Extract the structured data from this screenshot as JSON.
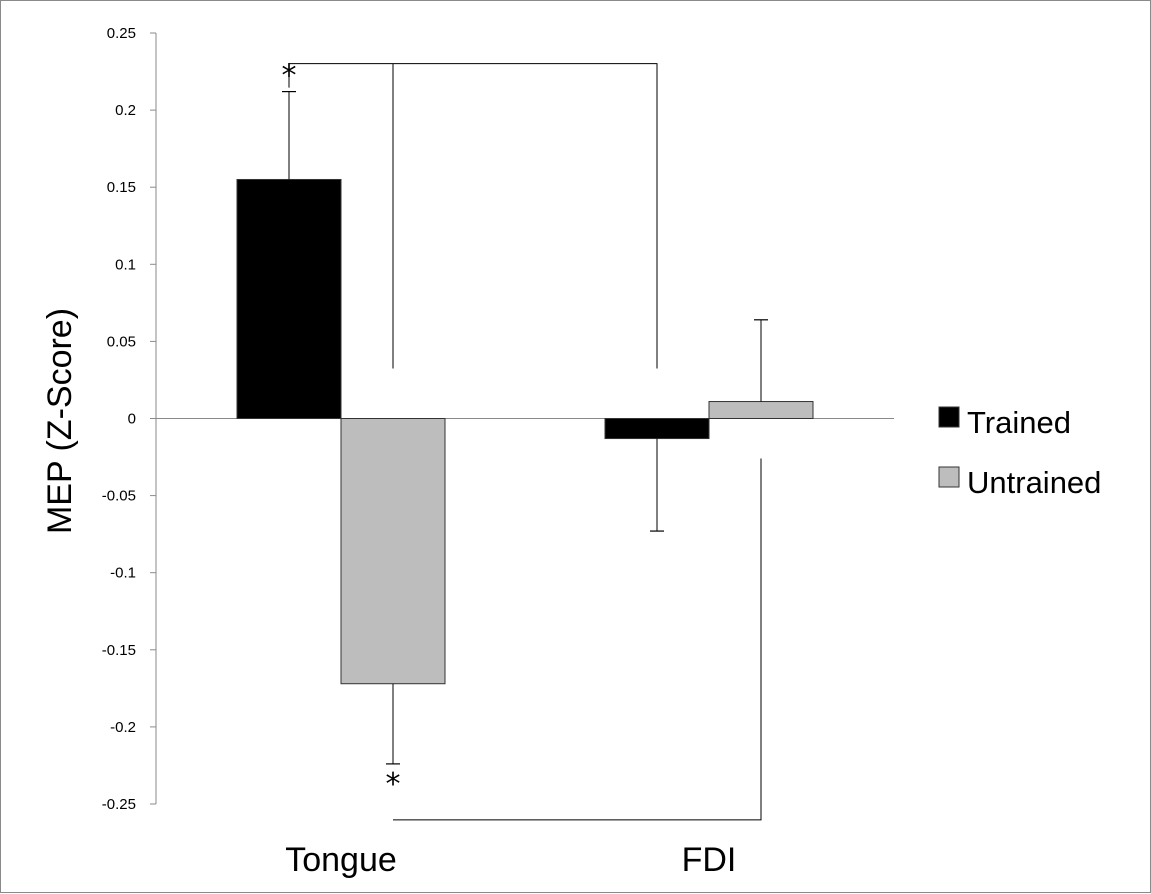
{
  "chart_data": {
    "type": "bar",
    "ylabel": "MEP (Z-Score)",
    "categories": [
      "Tongue",
      "FDI"
    ],
    "series": [
      {
        "name": "Trained",
        "color": "#000000",
        "values": [
          0.155,
          -0.013
        ],
        "errors": [
          0.057,
          0.06
        ]
      },
      {
        "name": "Untrained",
        "color": "#bdbdbd",
        "values": [
          -0.172,
          0.011
        ],
        "errors": [
          0.052,
          0.053
        ]
      }
    ],
    "ylim": [
      -0.25,
      0.25
    ],
    "yticks": [
      "0.25",
      "0.2",
      "0.15",
      "0.1",
      "0.05",
      "0",
      "-0.05",
      "-0.1",
      "-0.15",
      "-0.2",
      "-0.25"
    ],
    "grid": false,
    "legend": "right",
    "annotations": [
      {
        "label": "*",
        "series": "Trained",
        "category": "Tongue"
      },
      {
        "label": "*",
        "series": "Untrained",
        "category": "Tongue"
      }
    ]
  }
}
